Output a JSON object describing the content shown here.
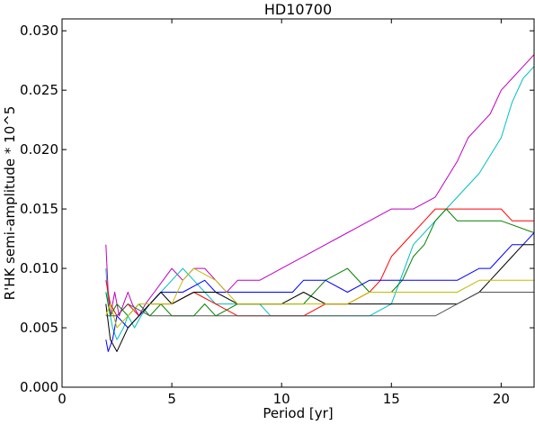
{
  "chart_data": {
    "type": "line",
    "title": "HD10700",
    "xlabel": "Period [yr]",
    "ylabel": "R'HK semi-amplitude * 10^5",
    "xlim": [
      0,
      21.5
    ],
    "ylim": [
      0,
      0.031
    ],
    "xticks": [
      0,
      5,
      10,
      15,
      20
    ],
    "xtick_labels": [
      "0",
      "5",
      "10",
      "15",
      "20"
    ],
    "yticks": [
      0.0,
      0.005,
      0.01,
      0.015,
      0.02,
      0.025,
      0.03
    ],
    "ytick_labels": [
      "0.000",
      "0.005",
      "0.010",
      "0.015",
      "0.020",
      "0.025",
      "0.030"
    ],
    "grid": false,
    "legend": "none",
    "series": [
      {
        "color": "#bf00bf",
        "x": [
          2.0,
          2.1,
          2.2,
          2.3,
          2.4,
          2.6,
          2.8,
          3.0,
          3.2,
          3.5,
          3.8,
          4.2,
          4.6,
          5.0,
          5.5,
          6.0,
          6.5,
          7.0,
          7.5,
          8.0,
          9.0,
          10.0,
          11.0,
          12.0,
          13.0,
          14.0,
          15.0,
          16.0,
          17.0,
          18.0,
          18.5,
          19.0,
          19.5,
          20.0,
          20.5,
          21.0,
          21.5
        ],
        "y": [
          0.012,
          0.008,
          0.006,
          0.007,
          0.008,
          0.006,
          0.007,
          0.008,
          0.007,
          0.006,
          0.007,
          0.008,
          0.009,
          0.01,
          0.009,
          0.01,
          0.01,
          0.009,
          0.008,
          0.009,
          0.009,
          0.01,
          0.011,
          0.012,
          0.013,
          0.014,
          0.015,
          0.015,
          0.016,
          0.019,
          0.021,
          0.022,
          0.023,
          0.025,
          0.026,
          0.027,
          0.028
        ]
      },
      {
        "color": "#00bfbf",
        "x": [
          2.0,
          2.1,
          2.3,
          2.5,
          2.8,
          3.0,
          3.3,
          3.6,
          4.0,
          4.5,
          5.0,
          5.5,
          6.0,
          6.5,
          7.0,
          8.0,
          9.0,
          9.5,
          10.0,
          11.0,
          12.0,
          13.0,
          14.0,
          15.0,
          16.0,
          17.0,
          18.0,
          19.0,
          20.0,
          20.5,
          21.0,
          21.5
        ],
        "y": [
          0.01,
          0.007,
          0.005,
          0.004,
          0.005,
          0.006,
          0.005,
          0.006,
          0.007,
          0.008,
          0.009,
          0.01,
          0.009,
          0.008,
          0.007,
          0.007,
          0.007,
          0.006,
          0.006,
          0.006,
          0.006,
          0.006,
          0.006,
          0.007,
          0.012,
          0.014,
          0.016,
          0.018,
          0.021,
          0.024,
          0.026,
          0.027
        ]
      },
      {
        "color": "#ff0000",
        "x": [
          2.0,
          2.2,
          2.5,
          3.0,
          3.5,
          4.0,
          4.5,
          5.0,
          6.0,
          7.0,
          8.0,
          9.0,
          10.0,
          11.0,
          12.0,
          13.0,
          14.0,
          14.5,
          15.0,
          16.0,
          16.5,
          17.0,
          18.0,
          20.0,
          20.5,
          21.5
        ],
        "y": [
          0.009,
          0.007,
          0.006,
          0.007,
          0.006,
          0.007,
          0.007,
          0.007,
          0.008,
          0.007,
          0.006,
          0.006,
          0.006,
          0.006,
          0.007,
          0.007,
          0.008,
          0.009,
          0.011,
          0.013,
          0.014,
          0.015,
          0.015,
          0.015,
          0.014,
          0.014
        ]
      },
      {
        "color": "#008000",
        "x": [
          2.0,
          2.2,
          2.5,
          3.0,
          3.5,
          4.0,
          4.5,
          5.0,
          6.0,
          6.5,
          7.0,
          8.0,
          9.0,
          10.0,
          11.0,
          12.0,
          13.0,
          14.0,
          15.0,
          15.5,
          16.0,
          16.5,
          17.0,
          17.5,
          18.0,
          20.0,
          21.5
        ],
        "y": [
          0.008,
          0.006,
          0.007,
          0.006,
          0.007,
          0.006,
          0.007,
          0.006,
          0.006,
          0.007,
          0.006,
          0.007,
          0.007,
          0.007,
          0.007,
          0.009,
          0.01,
          0.008,
          0.008,
          0.009,
          0.011,
          0.012,
          0.014,
          0.015,
          0.014,
          0.014,
          0.013
        ]
      },
      {
        "color": "#0000ff",
        "x": [
          2.0,
          2.1,
          2.3,
          2.5,
          3.0,
          3.5,
          4.0,
          4.5,
          5.0,
          5.5,
          6.5,
          7.0,
          8.0,
          9.0,
          10.0,
          10.5,
          11.0,
          12.0,
          13.0,
          14.0,
          15.0,
          16.0,
          17.0,
          18.0,
          19.0,
          19.5,
          20.0,
          20.5,
          21.0,
          21.5
        ],
        "y": [
          0.004,
          0.003,
          0.004,
          0.006,
          0.005,
          0.006,
          0.007,
          0.008,
          0.008,
          0.008,
          0.009,
          0.008,
          0.008,
          0.008,
          0.008,
          0.008,
          0.009,
          0.009,
          0.008,
          0.009,
          0.009,
          0.009,
          0.009,
          0.009,
          0.01,
          0.01,
          0.011,
          0.012,
          0.012,
          0.013
        ]
      },
      {
        "color": "#000000",
        "x": [
          2.0,
          2.2,
          2.5,
          3.0,
          3.5,
          4.0,
          4.5,
          5.0,
          6.0,
          7.0,
          8.0,
          9.0,
          10.0,
          11.0,
          12.0,
          13.0,
          14.0,
          15.0,
          16.0,
          17.0,
          18.0,
          19.0,
          19.5,
          20.0,
          20.5,
          21.0,
          21.5
        ],
        "y": [
          0.007,
          0.004,
          0.003,
          0.005,
          0.006,
          0.007,
          0.008,
          0.007,
          0.008,
          0.008,
          0.007,
          0.007,
          0.007,
          0.008,
          0.007,
          0.007,
          0.007,
          0.007,
          0.007,
          0.007,
          0.007,
          0.008,
          0.009,
          0.01,
          0.011,
          0.012,
          0.012
        ]
      },
      {
        "color": "#bfbf00",
        "x": [
          2.0,
          2.2,
          2.5,
          3.0,
          3.5,
          4.0,
          4.5,
          5.0,
          5.5,
          6.0,
          7.0,
          8.0,
          9.0,
          10.0,
          11.0,
          12.0,
          13.0,
          14.0,
          15.0,
          16.0,
          17.0,
          18.0,
          19.0,
          20.0,
          21.0,
          21.5
        ],
        "y": [
          0.006,
          0.007,
          0.005,
          0.006,
          0.007,
          0.007,
          0.007,
          0.007,
          0.009,
          0.01,
          0.009,
          0.007,
          0.007,
          0.007,
          0.007,
          0.007,
          0.007,
          0.008,
          0.008,
          0.008,
          0.008,
          0.008,
          0.009,
          0.009,
          0.009,
          0.009
        ]
      },
      {
        "color": "#555555",
        "x": [
          2.0,
          2.5,
          3.0,
          4.0,
          5.0,
          6.0,
          7.0,
          8.0,
          10.0,
          12.0,
          14.0,
          16.0,
          17.0,
          18.0,
          19.0,
          20.0,
          21.0,
          21.5
        ],
        "y": [
          0.006,
          0.006,
          0.007,
          0.006,
          0.006,
          0.006,
          0.006,
          0.006,
          0.006,
          0.006,
          0.006,
          0.006,
          0.006,
          0.007,
          0.008,
          0.008,
          0.008,
          0.008
        ]
      }
    ]
  }
}
